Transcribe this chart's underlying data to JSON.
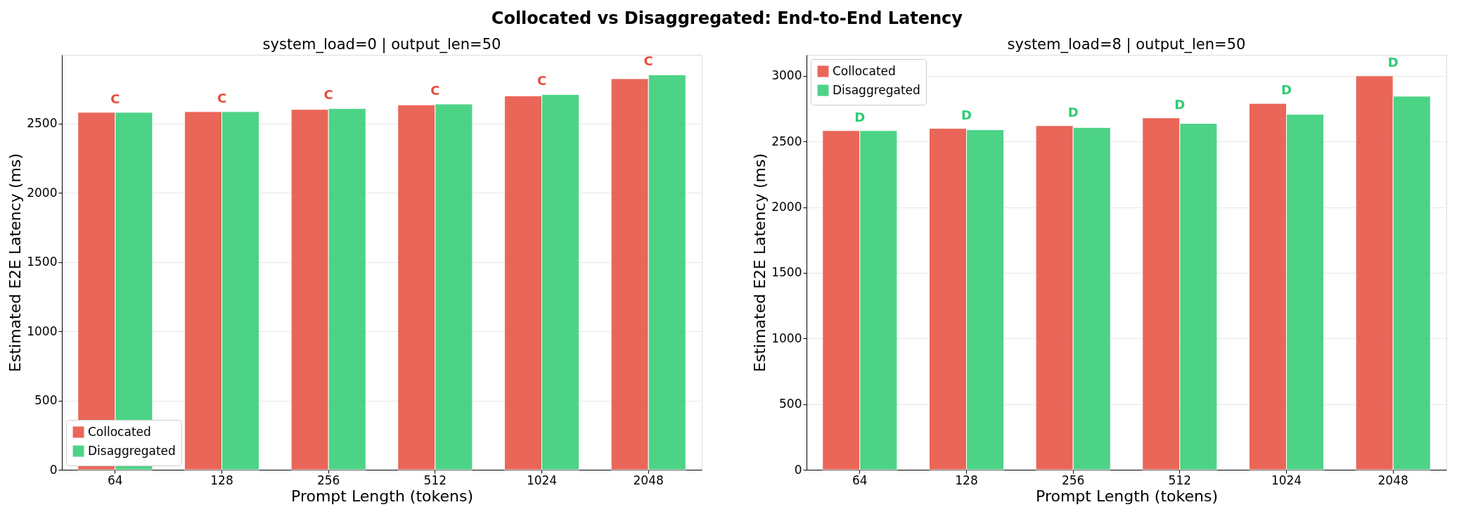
{
  "chart_data": [
    {
      "type": "bar",
      "title": "Collocated vs Disaggregated: End-to-End Latency",
      "subtitle": "system_load=0  |  output_len=50",
      "xlabel": "Prompt Length (tokens)",
      "ylabel": "Estimated E2E Latency (ms)",
      "categories": [
        "64",
        "128",
        "256",
        "512",
        "1024",
        "2048"
      ],
      "series": [
        {
          "name": "Collocated",
          "color": "#e74c3c",
          "values": [
            2580,
            2585,
            2601,
            2634,
            2699,
            2823
          ]
        },
        {
          "name": "Disaggregated",
          "color": "#2ecc71",
          "values": [
            2580,
            2585,
            2608,
            2640,
            2709,
            2851
          ]
        }
      ],
      "annotations": [
        {
          "text": "C",
          "x": "64",
          "y": 2580
        },
        {
          "text": "C",
          "x": "128",
          "y": 2585
        },
        {
          "text": "C",
          "x": "256",
          "y": 2608
        },
        {
          "text": "C",
          "x": "512",
          "y": 2640
        },
        {
          "text": "C",
          "x": "1024",
          "y": 2709
        },
        {
          "text": "C",
          "x": "2048",
          "y": 2851
        }
      ],
      "ylim": [
        0,
        2995
      ],
      "yticks": [
        0,
        500,
        1000,
        1500,
        2000,
        2500
      ],
      "grid": "y",
      "legend": "bottom left"
    },
    {
      "type": "bar",
      "subtitle": "system_load=8  |  output_len=50",
      "xlabel": "Prompt Length (tokens)",
      "ylabel": "Estimated E2E Latency (ms)",
      "categories": [
        "64",
        "128",
        "256",
        "512",
        "1024",
        "2048"
      ],
      "series": [
        {
          "name": "Collocated",
          "color": "#e74c3c",
          "values": [
            2583,
            2600,
            2621,
            2680,
            2790,
            3000
          ]
        },
        {
          "name": "Disaggregated",
          "color": "#2ecc71",
          "values": [
            2583,
            2590,
            2607,
            2638,
            2707,
            2845
          ]
        }
      ],
      "annotations": [
        {
          "text": "D",
          "x": "64",
          "y": 2583
        },
        {
          "text": "D",
          "x": "128",
          "y": 2600
        },
        {
          "text": "D",
          "x": "256",
          "y": 2621
        },
        {
          "text": "D",
          "x": "512",
          "y": 2680
        },
        {
          "text": "D",
          "x": "1024",
          "y": 2790
        },
        {
          "text": "D",
          "x": "2048",
          "y": 3000
        }
      ],
      "ylim": [
        0,
        3160
      ],
      "yticks": [
        0,
        500,
        1000,
        1500,
        2000,
        2500,
        3000
      ],
      "grid": "y",
      "legend": "top left"
    }
  ]
}
